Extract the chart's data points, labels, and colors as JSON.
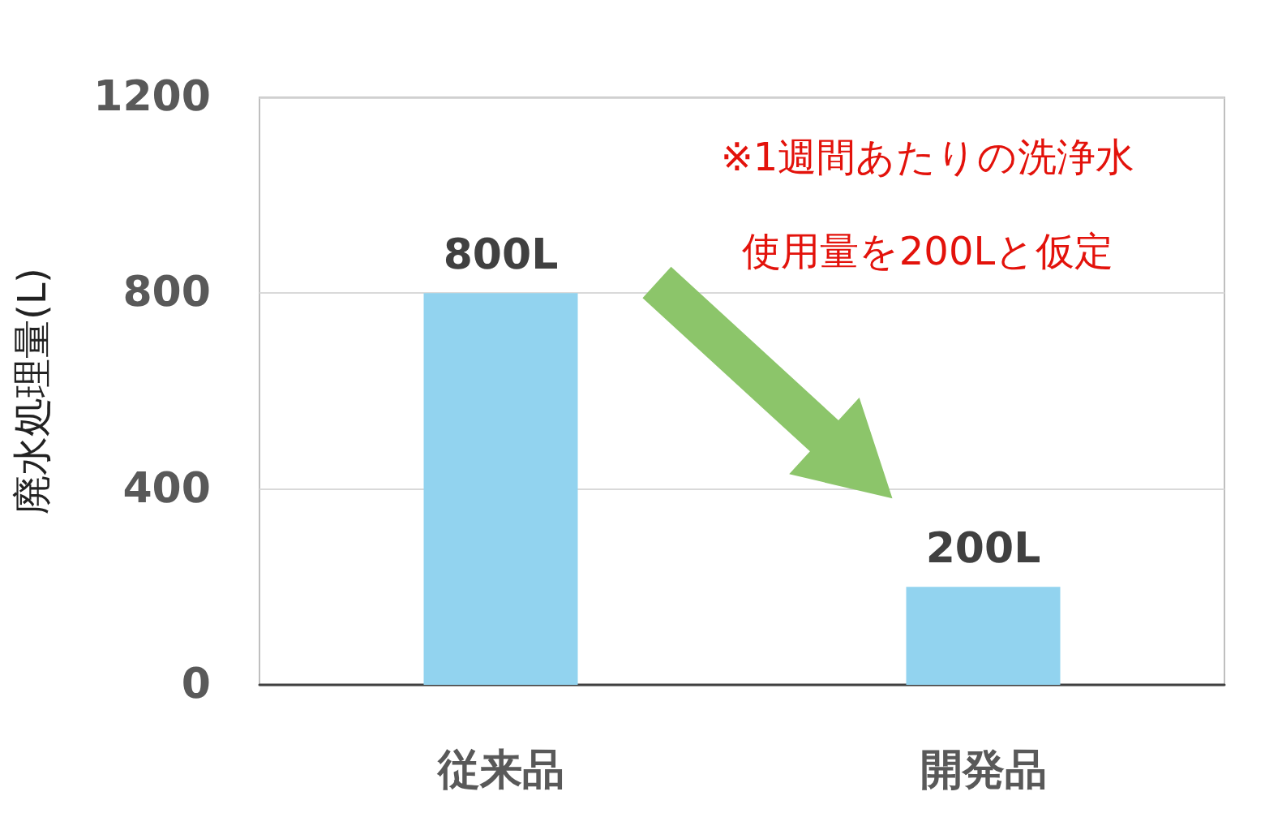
{
  "chart_data": {
    "type": "bar",
    "ylabel": "廃水処理量(L)",
    "categories": [
      "従来品",
      "開発品"
    ],
    "values": [
      800,
      200
    ],
    "value_labels": [
      "800L",
      "200L"
    ],
    "color": "#92d3ef",
    "ylim": [
      0,
      1200
    ],
    "yticks": [
      0,
      400,
      800,
      1200
    ],
    "grid": "y",
    "annotations": [
      "※1週間あたりの洗浄水",
      "使用量を200Lと仮定"
    ]
  }
}
